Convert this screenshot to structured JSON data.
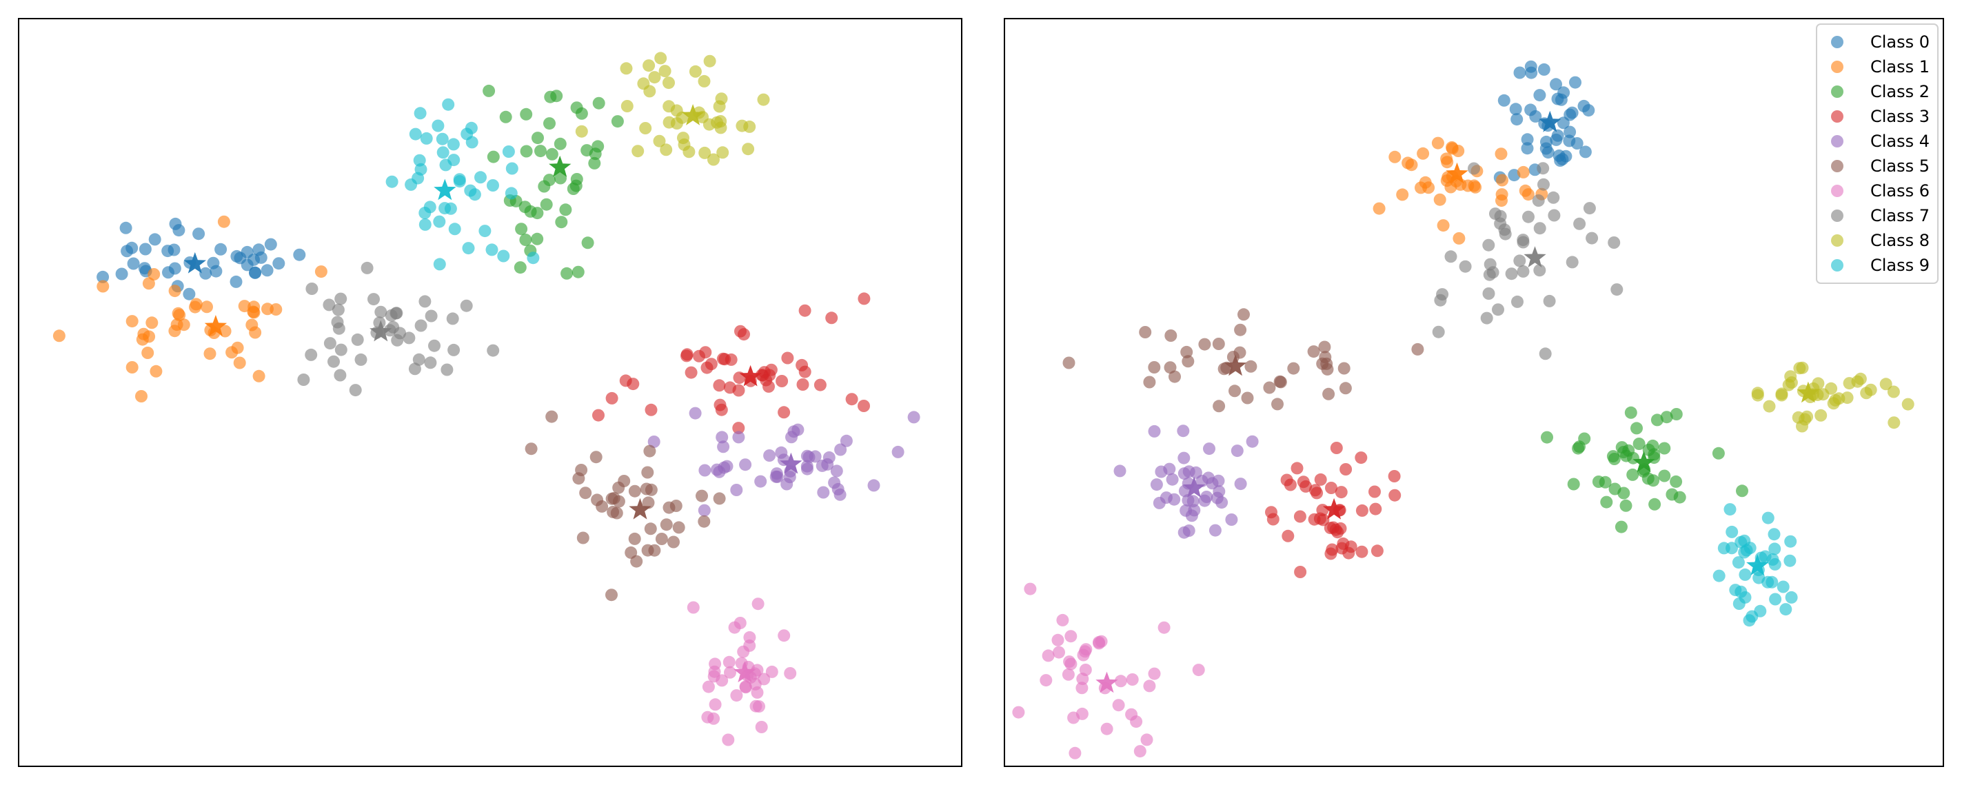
{
  "colors": {
    "class_palette": [
      "#1f77b4",
      "#ff7f0e",
      "#2ca02c",
      "#d62728",
      "#9467bd",
      "#8c564b",
      "#e377c2",
      "#7f7f7f",
      "#bcbd22",
      "#17becf"
    ],
    "light_palette": [
      "#4f8fc2",
      "#ff9c45",
      "#55b255",
      "#dd5152",
      "#a987c8",
      "#c0a49c",
      "#f2bad9",
      "#cccccc",
      "#dcdc99",
      "#a7dfe8"
    ],
    "axes_frame": "#000000"
  },
  "chart_data": [
    {
      "type": "scatter",
      "xlim": [
        0,
        100
      ],
      "ylim": [
        0,
        100
      ],
      "grid": false,
      "axis_ticks": false,
      "classes": [
        {
          "name": "Class 0",
          "centroid": [
            18.7,
            67.2
          ],
          "spread": [
            8.2,
            2.8
          ],
          "count": 38
        },
        {
          "name": "Class 1",
          "centroid": [
            20.9,
            58.8
          ],
          "spread": [
            8.5,
            5.0
          ],
          "count": 40
        },
        {
          "name": "Class 2",
          "centroid": [
            57.4,
            80.1
          ],
          "spread": [
            5.0,
            8.5
          ],
          "count": 42
        },
        {
          "name": "Class 3",
          "centroid": [
            77.6,
            52.1
          ],
          "spread": [
            8.5,
            4.5
          ],
          "count": 44
        },
        {
          "name": "Class 4",
          "centroid": [
            81.9,
            40.4
          ],
          "spread": [
            8.0,
            4.0
          ],
          "count": 44
        },
        {
          "name": "Class 5",
          "centroid": [
            65.9,
            34.3
          ],
          "spread": [
            5.5,
            6.0
          ],
          "count": 38
        },
        {
          "name": "Class 6",
          "centroid": [
            77.0,
            12.5
          ],
          "spread": [
            3.0,
            6.0
          ],
          "count": 36
        },
        {
          "name": "Class 7",
          "centroid": [
            38.4,
            58.1
          ],
          "spread": [
            6.5,
            5.5
          ],
          "count": 40
        },
        {
          "name": "Class 8",
          "centroid": [
            71.5,
            87.0
          ],
          "spread": [
            5.0,
            6.5
          ],
          "count": 40
        },
        {
          "name": "Class 9",
          "centroid": [
            45.2,
            77.0
          ],
          "spread": [
            6.0,
            8.0
          ],
          "count": 40
        }
      ]
    },
    {
      "type": "scatter",
      "xlim": [
        0,
        100
      ],
      "ylim": [
        0,
        100
      ],
      "grid": false,
      "axis_ticks": false,
      "legend": "top-right",
      "classes": [
        {
          "name": "Class 0",
          "centroid": [
            58.1,
            86.1
          ],
          "spread": [
            3.0,
            5.5
          ],
          "count": 40
        },
        {
          "name": "Class 1",
          "centroid": [
            48.2,
            79.2
          ],
          "spread": [
            4.5,
            3.5
          ],
          "count": 36
        },
        {
          "name": "Class 2",
          "centroid": [
            68.1,
            40.6
          ],
          "spread": [
            6.0,
            5.0
          ],
          "count": 42
        },
        {
          "name": "Class 3",
          "centroid": [
            35.1,
            34.3
          ],
          "spread": [
            4.0,
            5.5
          ],
          "count": 42
        },
        {
          "name": "Class 4",
          "centroid": [
            20.2,
            37.2
          ],
          "spread": [
            4.5,
            5.0
          ],
          "count": 38
        },
        {
          "name": "Class 5",
          "centroid": [
            24.6,
            53.5
          ],
          "spread": [
            9.0,
            3.5
          ],
          "count": 36
        },
        {
          "name": "Class 6",
          "centroid": [
            10.9,
            11.1
          ],
          "spread": [
            6.5,
            5.5
          ],
          "count": 36
        },
        {
          "name": "Class 7",
          "centroid": [
            56.5,
            68.0
          ],
          "spread": [
            6.0,
            7.0
          ],
          "count": 40
        },
        {
          "name": "Class 8",
          "centroid": [
            85.6,
            49.9
          ],
          "spread": [
            6.0,
            2.5
          ],
          "count": 36
        },
        {
          "name": "Class 9",
          "centroid": [
            80.2,
            26.8
          ],
          "spread": [
            3.0,
            6.5
          ],
          "count": 36
        }
      ]
    }
  ],
  "legend": {
    "entries": [
      "Class 0",
      "Class 1",
      "Class 2",
      "Class 3",
      "Class 4",
      "Class 5",
      "Class 6",
      "Class 7",
      "Class 8",
      "Class 9"
    ]
  }
}
